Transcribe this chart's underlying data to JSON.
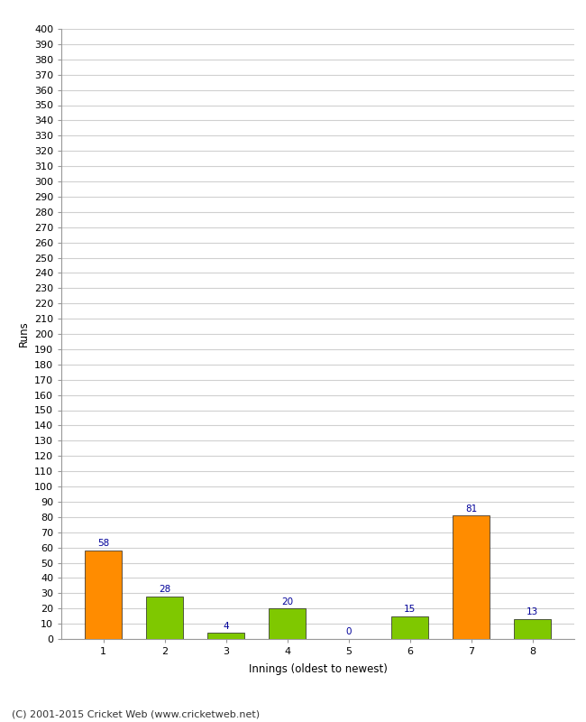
{
  "categories": [
    "1",
    "2",
    "3",
    "4",
    "5",
    "6",
    "7",
    "8"
  ],
  "values": [
    58,
    28,
    4,
    20,
    0,
    15,
    81,
    13
  ],
  "bar_colors": [
    "#ff8c00",
    "#7fc800",
    "#7fc800",
    "#7fc800",
    "#7fc800",
    "#7fc800",
    "#ff8c00",
    "#7fc800"
  ],
  "xlabel": "Innings (oldest to newest)",
  "ylabel": "Runs",
  "ylim": [
    0,
    400
  ],
  "ytick_step": 10,
  "label_color": "#000099",
  "footer": "(C) 2001-2015 Cricket Web (www.cricketweb.net)",
  "background_color": "#ffffff",
  "grid_color": "#d0d0d0",
  "label_fontsize": 7.5,
  "axis_tick_fontsize": 8,
  "axis_label_fontsize": 8.5,
  "footer_fontsize": 8
}
